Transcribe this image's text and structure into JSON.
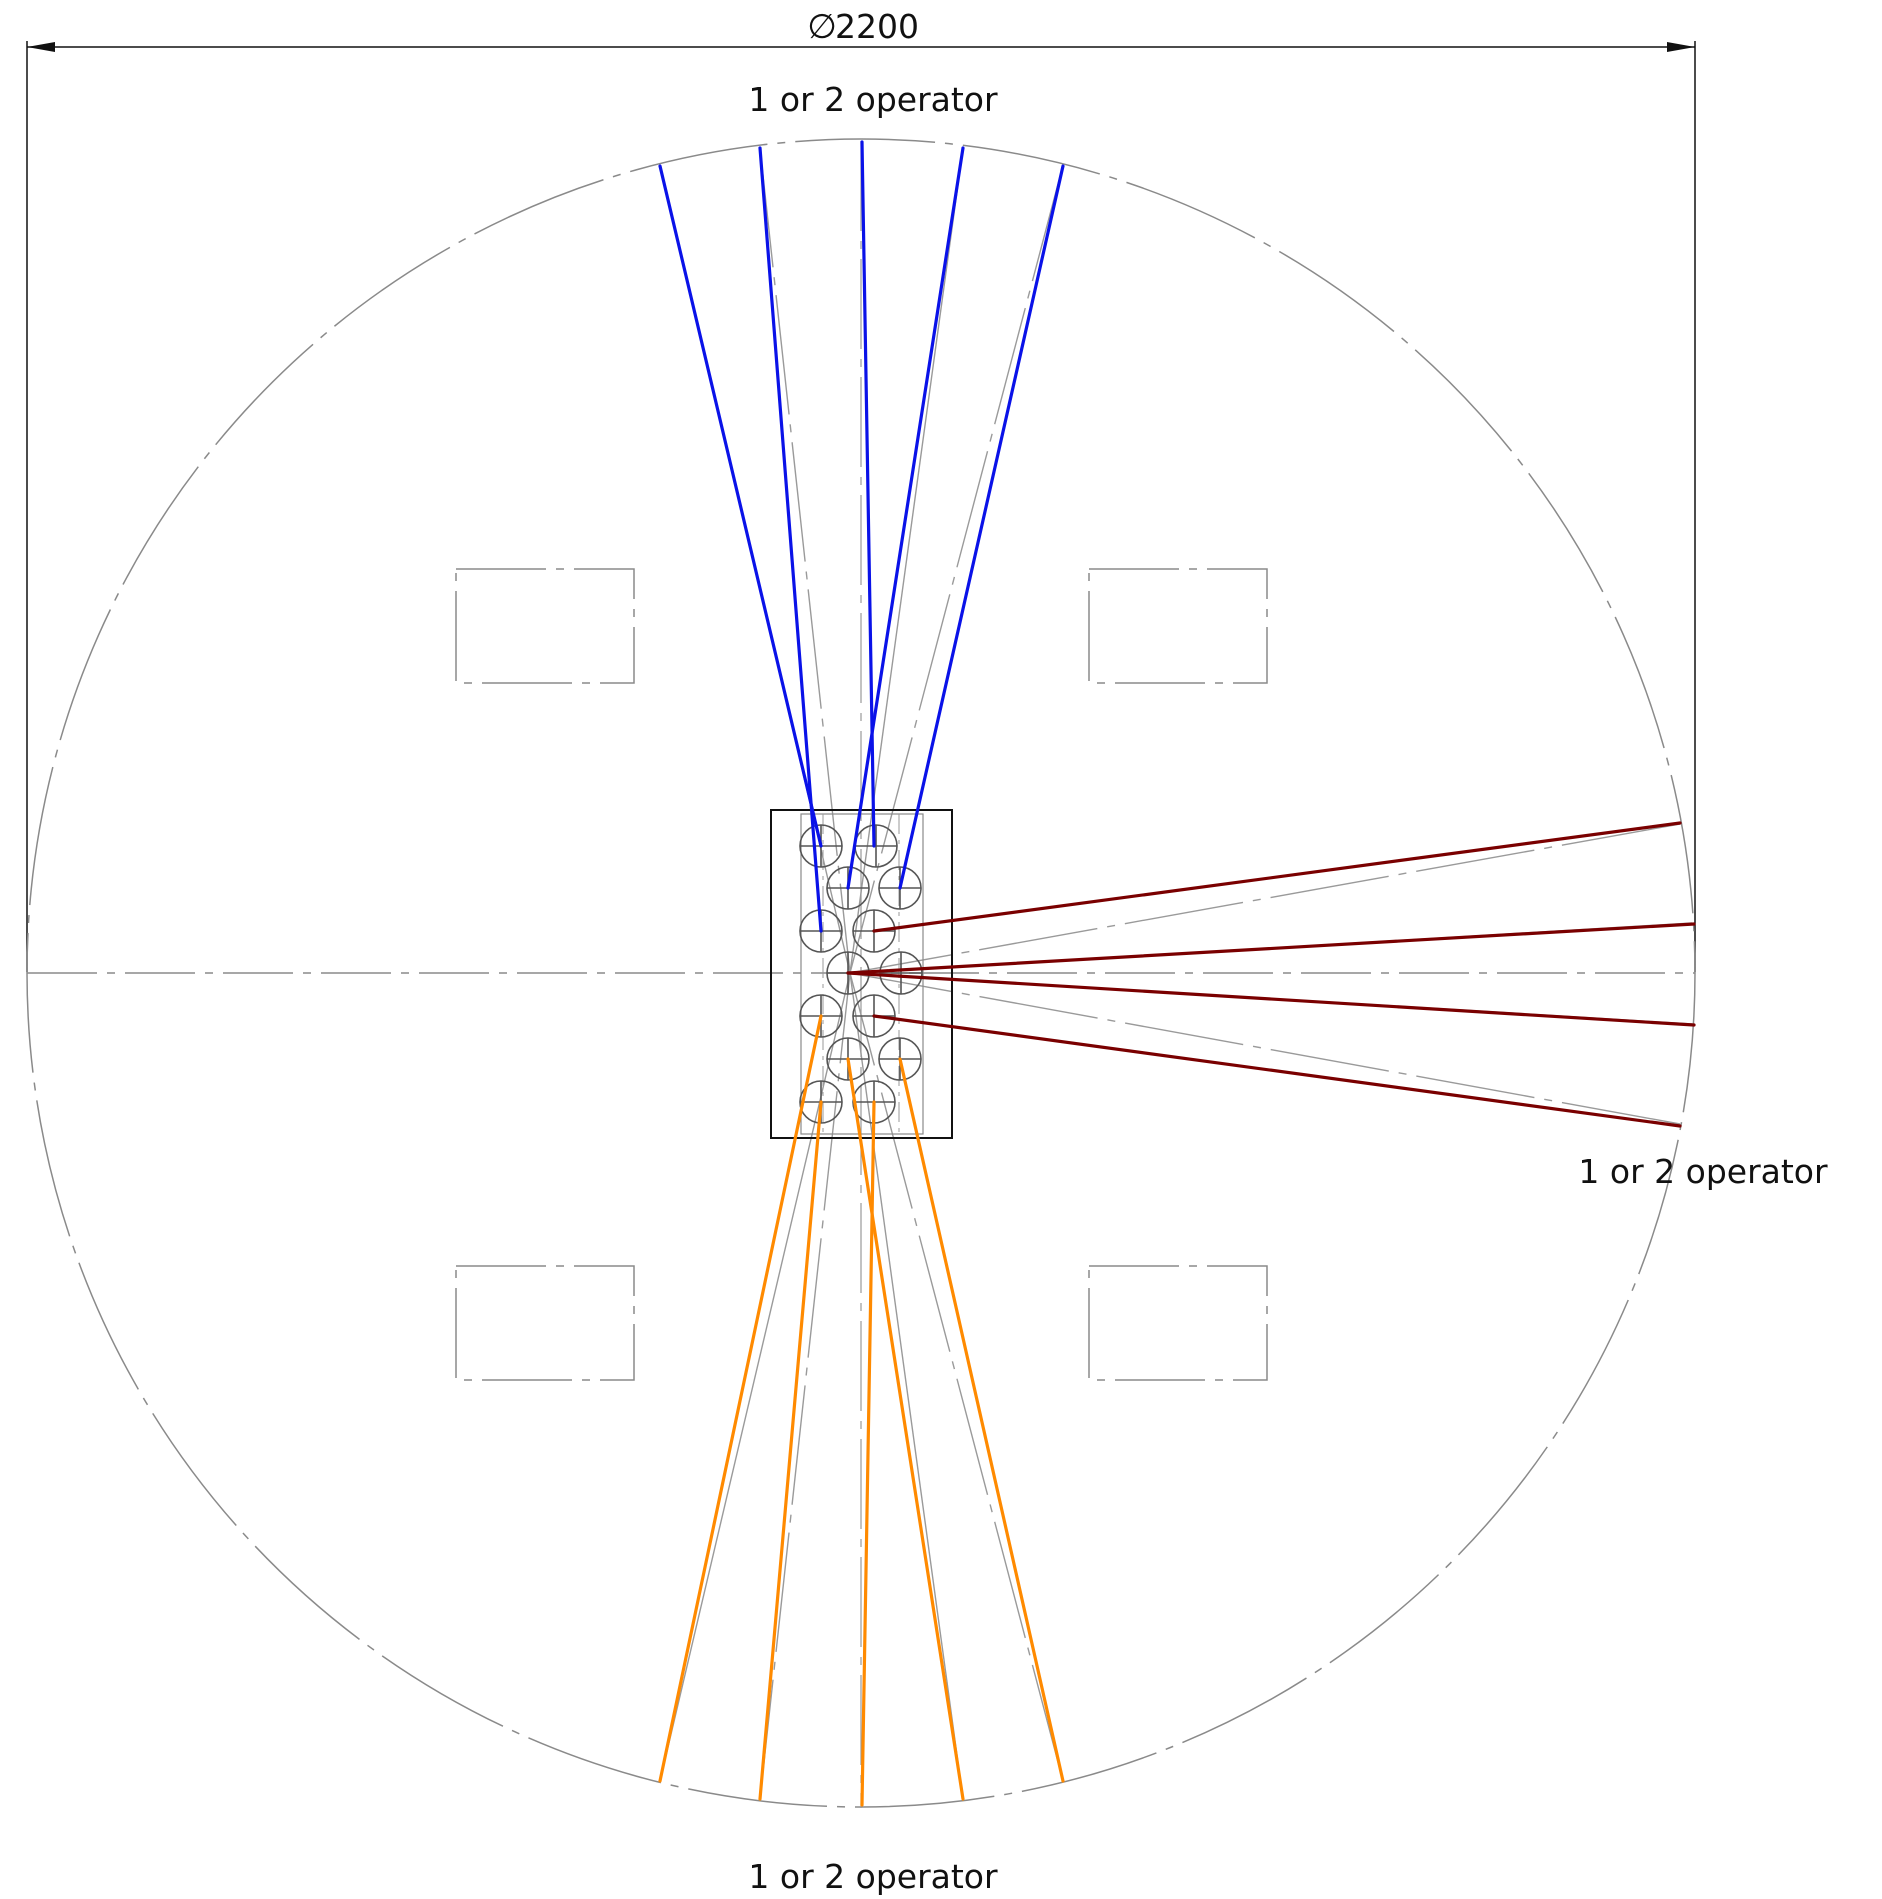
{
  "dimension": {
    "symbol": "∅",
    "value": "2200"
  },
  "labels": {
    "top": "1 or 2 operator",
    "right": "1 or 2 operator",
    "bottom": "1 or 2 operator"
  },
  "colors": {
    "background": "#ffffff",
    "outline": "#000000",
    "construction": "#8a8a8a",
    "sightline_top": "#0a12e8",
    "sightline_right": "#7a0000",
    "sightline_bottom": "#ff8a00"
  }
}
